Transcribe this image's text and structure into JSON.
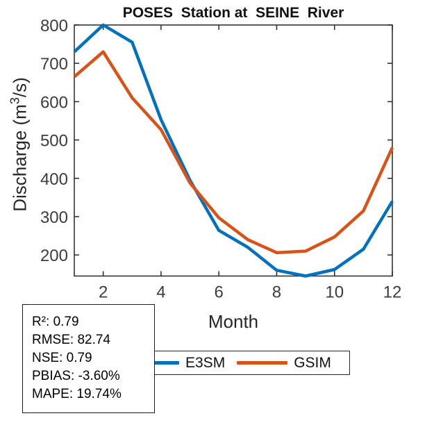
{
  "title": "POSES  Station at  SEINE  River",
  "chart_data": {
    "type": "line",
    "title": "POSES  Station at  SEINE  River",
    "xlabel": "Month",
    "ylabel": "Discharge (m³/s)",
    "x": [
      1,
      2,
      3,
      4,
      5,
      6,
      7,
      8,
      9,
      10,
      11,
      12
    ],
    "series": [
      {
        "name": "E3SM",
        "color": "#0072BD",
        "values": [
          730,
          800,
          755,
          553,
          395,
          264,
          220,
          160,
          145,
          162,
          215,
          340
        ]
      },
      {
        "name": "GSIM",
        "color": "#D95319",
        "values": [
          665,
          730,
          610,
          527,
          388,
          297,
          240,
          206,
          210,
          247,
          315,
          480
        ]
      }
    ],
    "xlim": [
      1,
      12
    ],
    "ylim": [
      145,
      800
    ],
    "xticks": [
      2,
      4,
      6,
      8,
      10,
      12
    ],
    "yticks": [
      200,
      300,
      400,
      500,
      600,
      700,
      800
    ],
    "grid": false,
    "legend_position": "below-plot-right",
    "axis_color": "#262626",
    "tick_label_color": "#3c3c3c"
  },
  "y_axis": {
    "label_prefix": "Discharge (m",
    "label_sup": "3",
    "label_suffix": "/s)"
  },
  "x_axis": {
    "label": "Month"
  },
  "stats_box": {
    "lines": [
      "R²: 0.79",
      "RMSE: 82.74",
      "NSE: 0.79",
      "PBIAS: -3.60%",
      "MAPE: 19.74%"
    ]
  },
  "legend": {
    "items": [
      {
        "label": "E3SM",
        "color": "#0072BD"
      },
      {
        "label": "GSIM",
        "color": "#D95319"
      }
    ]
  }
}
